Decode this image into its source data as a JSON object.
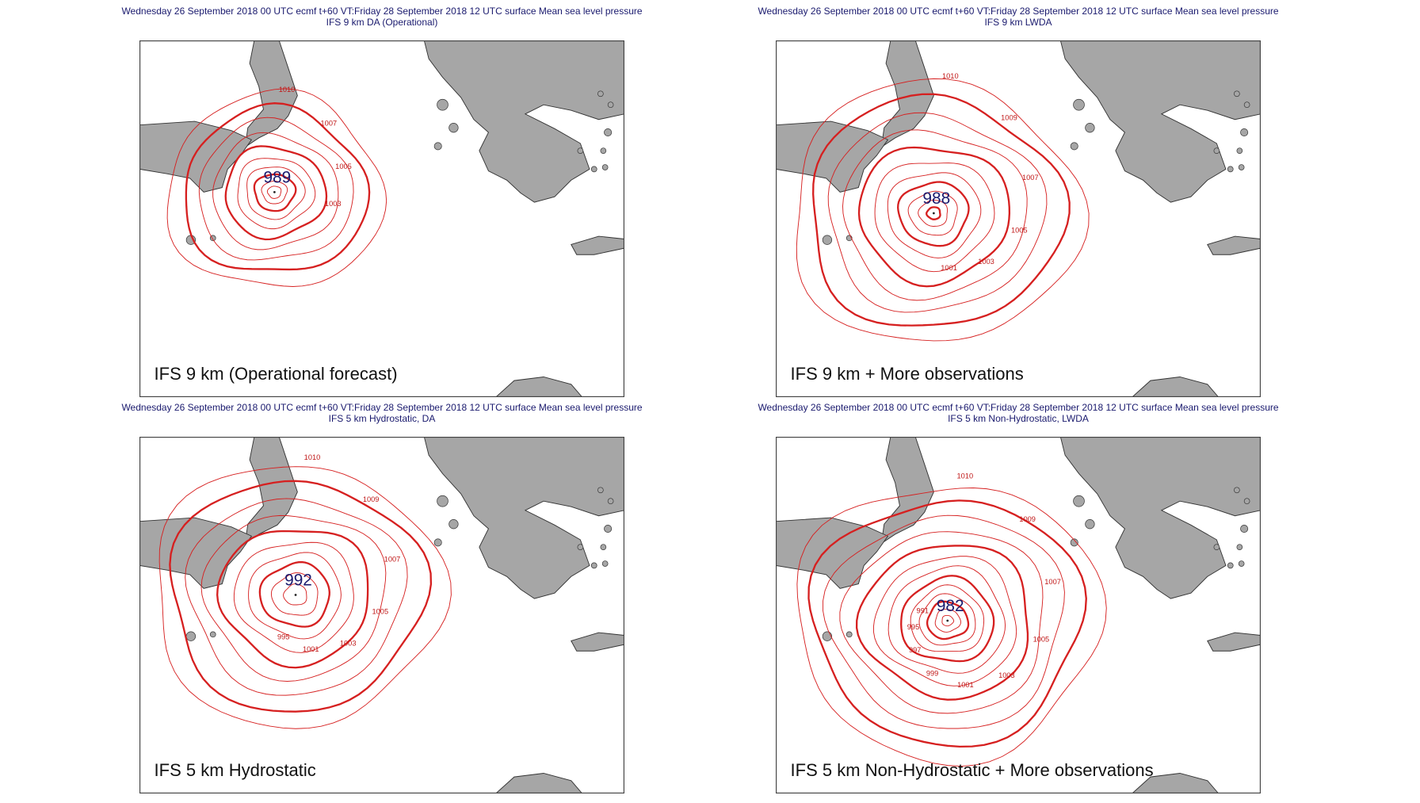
{
  "panels": [
    {
      "header": "Wednesday 26 September 2018 00 UTC ecmf t+60 VT:Friday 28 September 2018 12 UTC surface  Mean sea level pressure",
      "subtitle": "IFS 9 km DA (Operational)",
      "caption": "IFS 9 km (Operational forecast)",
      "center_pressure": "989",
      "contour_labels": [
        "1010",
        "1007",
        "1005",
        "1003"
      ]
    },
    {
      "header": "Wednesday 26 September 2018 00 UTC ecmf t+60 VT:Friday 28 September 2018 12 UTC surface  Mean sea level pressure",
      "subtitle": "IFS 9 km LWDA",
      "caption": "IFS 9 km + More observations",
      "center_pressure": "988",
      "contour_labels": [
        "1010",
        "1009",
        "1007",
        "1005",
        "1003",
        "1001"
      ]
    },
    {
      "header": "Wednesday 26 September 2018 00 UTC ecmf t+60 VT:Friday 28 September 2018 12 UTC surface  Mean sea level pressure",
      "subtitle": "IFS 5 km Hydrostatic, DA",
      "caption": "IFS 5 km Hydrostatic",
      "center_pressure": "992",
      "contour_labels": [
        "1010",
        "1009",
        "1007",
        "1005",
        "1003",
        "1001",
        "995"
      ]
    },
    {
      "header": "Wednesday 26 September 2018 00 UTC ecmf t+60 VT:Friday 28 September 2018 12 UTC surface  Mean sea level pressure",
      "subtitle": "IFS 5 km Non-Hydrostatic, LWDA",
      "caption": "IFS 5 km Non-Hydrostatic + More observations",
      "center_pressure": "982",
      "contour_labels": [
        "1010",
        "1009",
        "1007",
        "1005",
        "1003",
        "1001",
        "999",
        "997",
        "995",
        "991"
      ]
    }
  ]
}
